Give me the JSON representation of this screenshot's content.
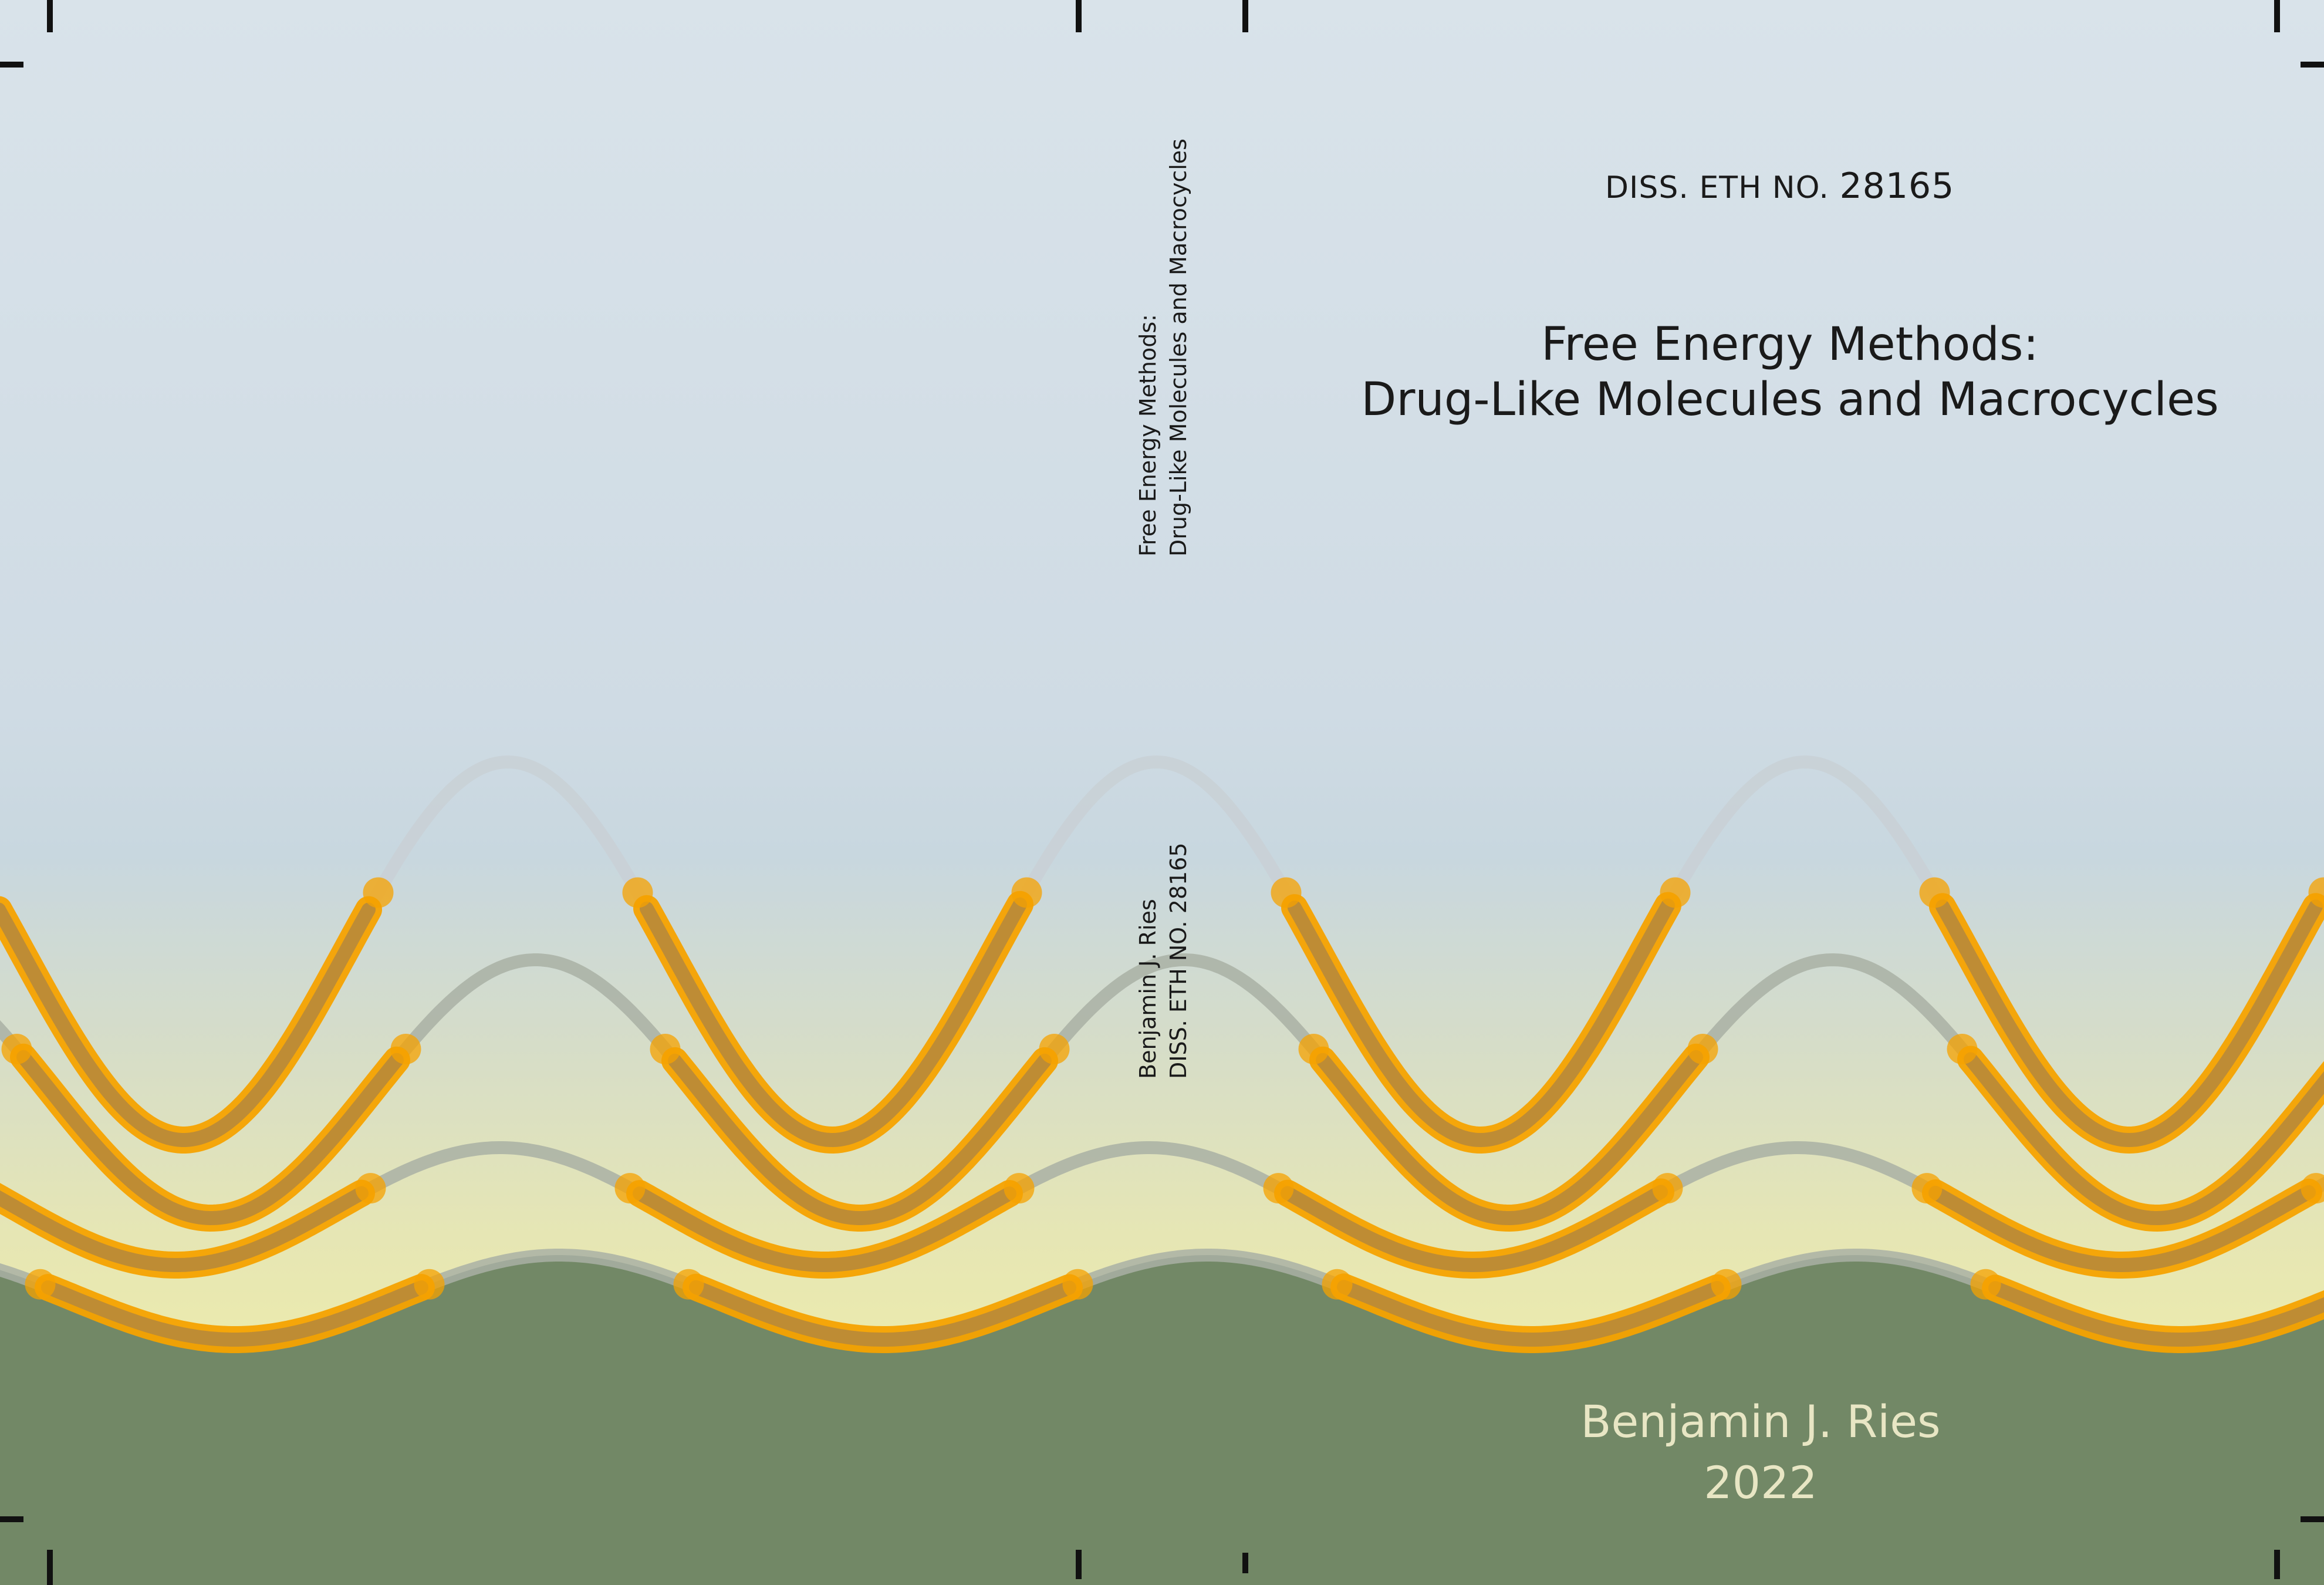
{
  "front": {
    "diss_prefix": "DISS. ETH NO.",
    "diss_number": "28165",
    "title_line1": "Free Energy Methods:",
    "title_line2": "Drug-Like Molecules and Macrocycles",
    "author": "Benjamin J. Ries",
    "year": "2022"
  },
  "spine": {
    "title_line1": "Free Energy Methods:",
    "title_line2": "Drug-Like Molecules and Macrocycles",
    "author": "Benjamin J. Ries",
    "diss": "DISS. ETH NO. 28165"
  },
  "colors": {
    "sky_top": "#d9e3ea",
    "sky_mid": "#c9d9e2",
    "horizon_glow": "#ebe9b0",
    "ground": "#728866",
    "curve_gray": "#a9b0a4",
    "highlight_orange": "#f5a200",
    "crop_marks": "#111111"
  },
  "icons": [
    "crop-mark-icon"
  ]
}
